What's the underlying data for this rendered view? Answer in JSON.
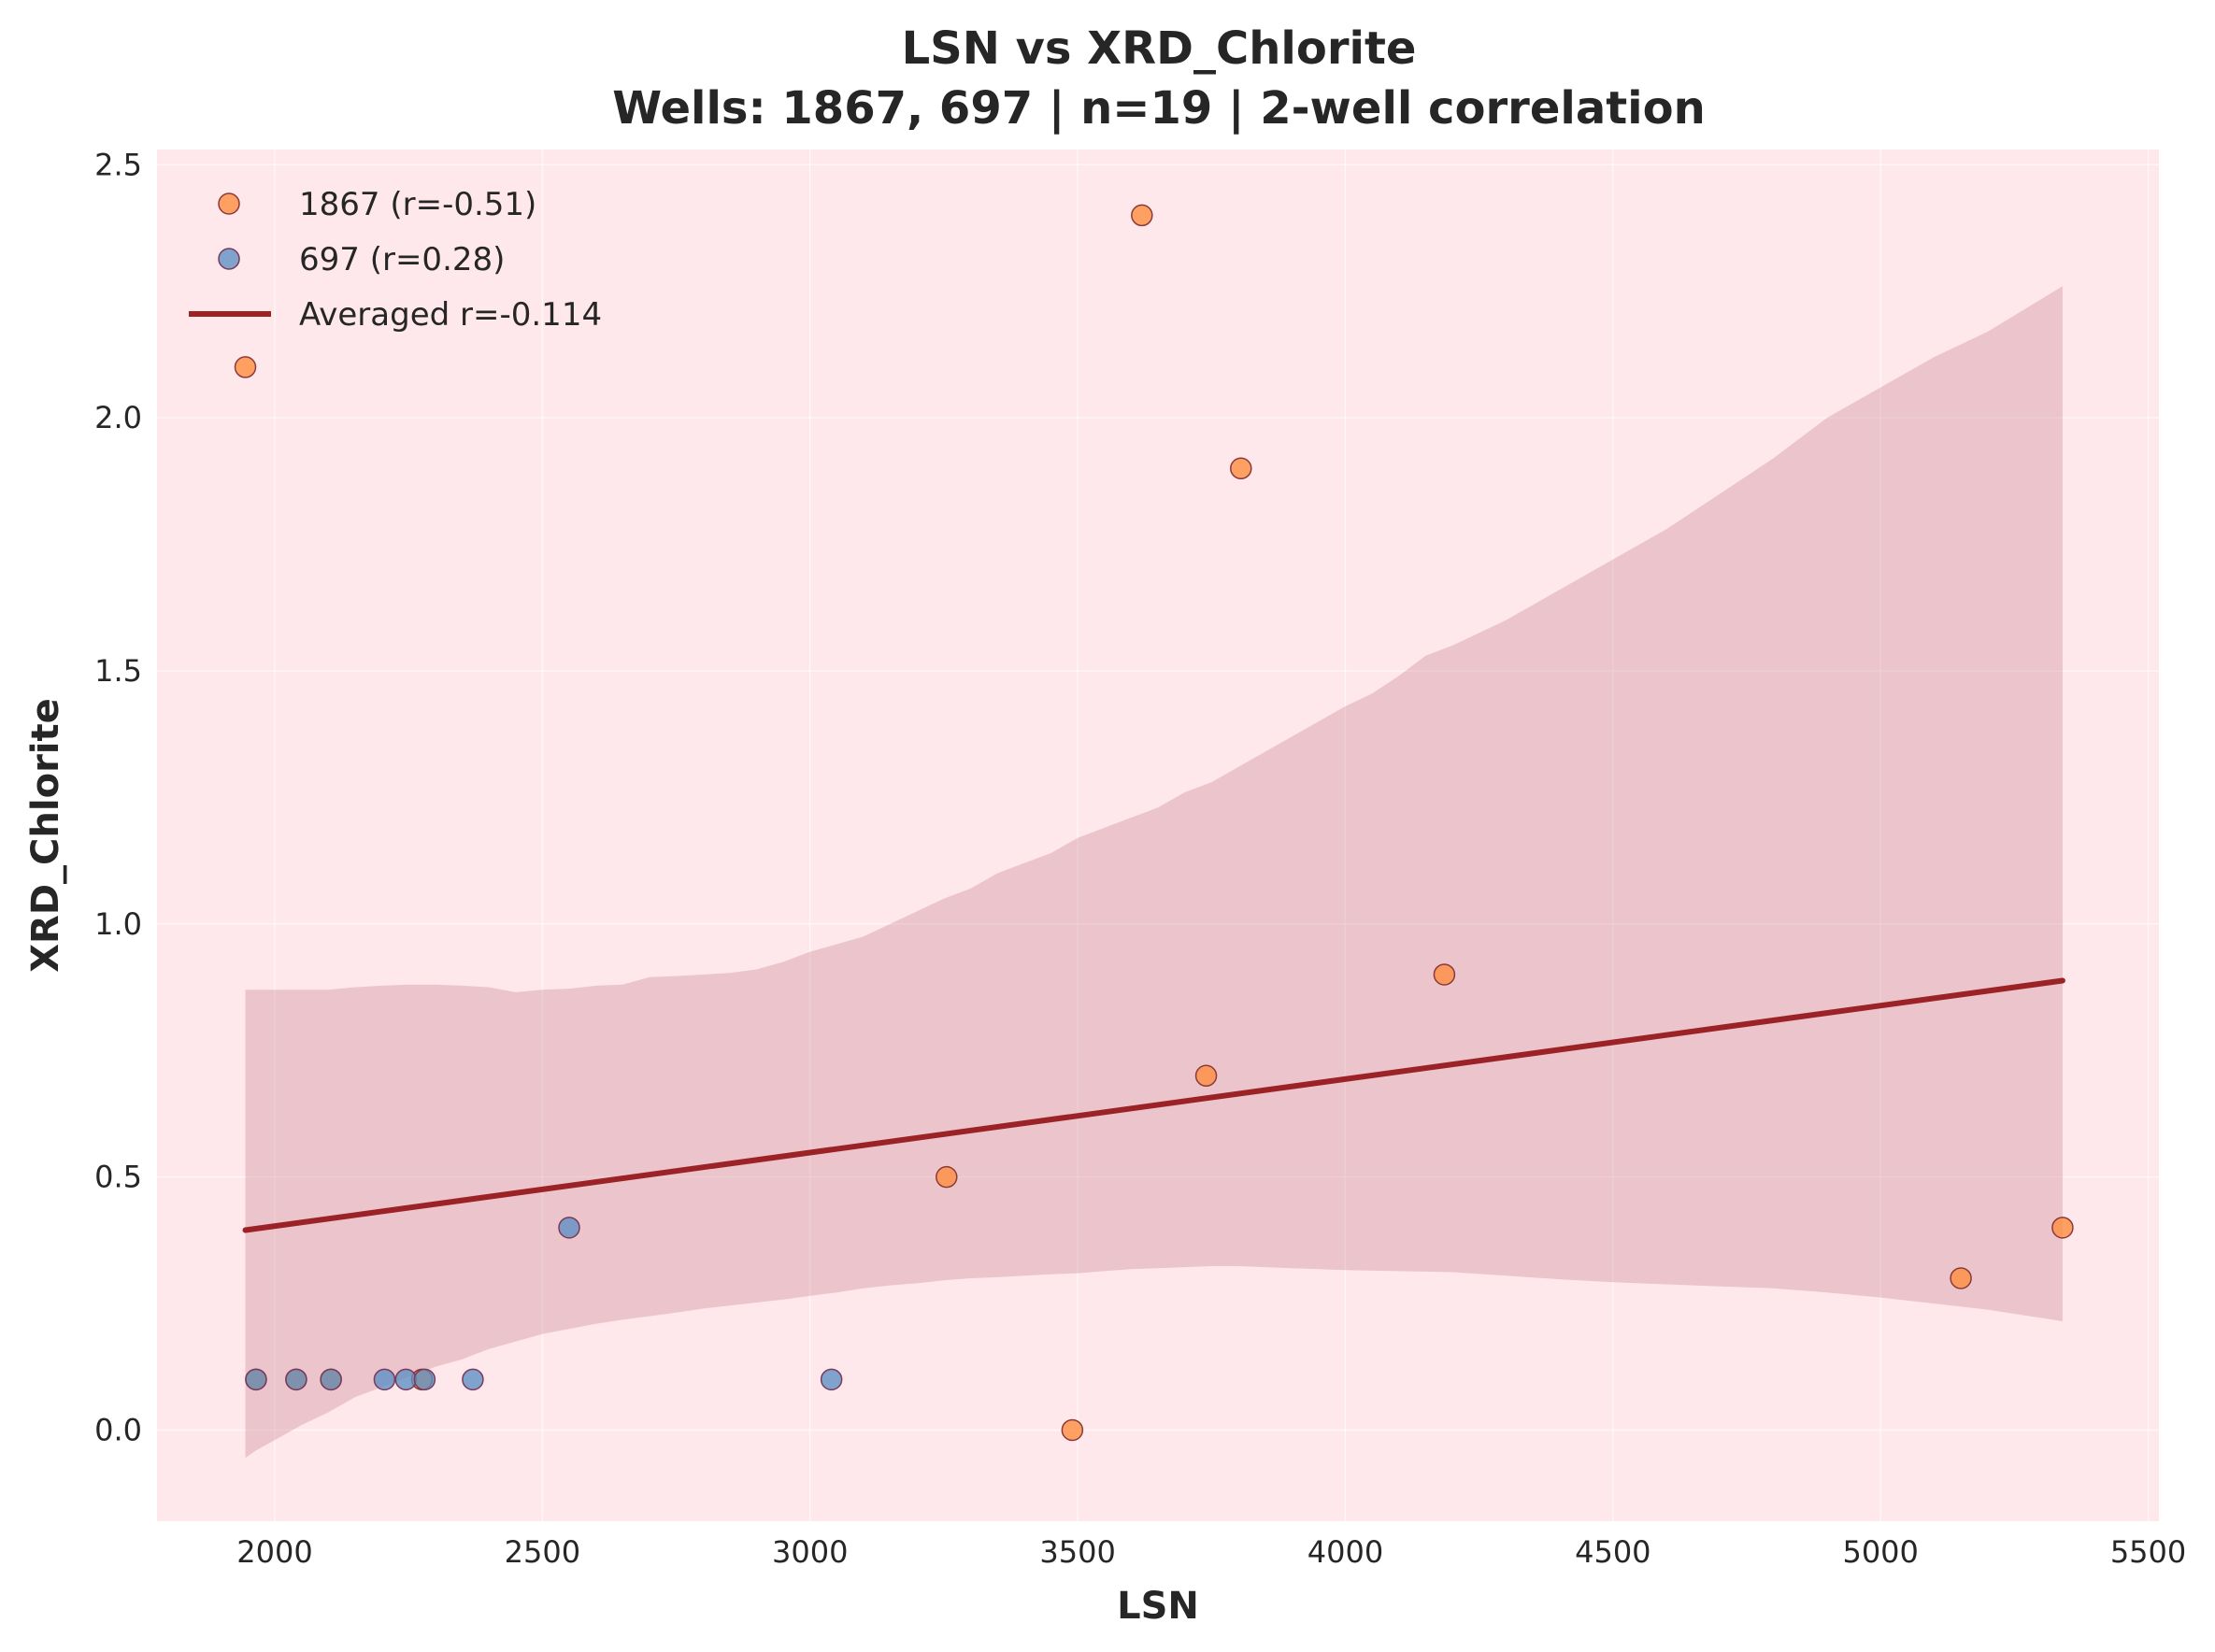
{
  "chart_data": {
    "type": "scatter",
    "title": "LSN vs XRD_Chlorite",
    "subtitle": "Wells: 1867, 697 | n=19 | 2-well correlation",
    "xlabel": "LSN",
    "ylabel": "XRD_Chlorite",
    "xlim": [
      1780,
      5520
    ],
    "ylim": [
      -0.18,
      2.53
    ],
    "xticks": [
      2000,
      2500,
      3000,
      3500,
      4000,
      4500,
      5000,
      5500
    ],
    "yticks": [
      0.0,
      0.5,
      1.0,
      1.5,
      2.0,
      2.5
    ],
    "grid": true,
    "legend": "upper-left",
    "series": [
      {
        "name": "1867 (r=-0.51)",
        "color": "#ff8c3c",
        "points": [
          [
            1945,
            2.1
          ],
          [
            3620,
            2.4
          ],
          [
            3805,
            1.9
          ],
          [
            4185,
            0.9
          ],
          [
            3740,
            0.7
          ],
          [
            3255,
            0.5
          ],
          [
            5150,
            0.3
          ],
          [
            5340,
            0.4
          ],
          [
            3490,
            0.0
          ],
          [
            1965,
            0.1
          ],
          [
            2040,
            0.1
          ],
          [
            2105,
            0.1
          ],
          [
            2275,
            0.1
          ]
        ]
      },
      {
        "name": "697 (r=0.28)",
        "color": "#5b8fc4",
        "points": [
          [
            1965,
            0.1
          ],
          [
            2040,
            0.1
          ],
          [
            2105,
            0.1
          ],
          [
            2205,
            0.1
          ],
          [
            2245,
            0.1
          ],
          [
            2280,
            0.1
          ],
          [
            2370,
            0.1
          ],
          [
            2550,
            0.4
          ],
          [
            3040,
            0.1
          ]
        ]
      }
    ],
    "fit_line": {
      "name": "Averaged r=-0.114",
      "color": "#9b2226",
      "points": [
        [
          1945,
          0.395
        ],
        [
          5340,
          0.888
        ]
      ]
    },
    "confidence_band": {
      "color": "#c9848f",
      "x": [
        1945,
        1965,
        2000,
        2050,
        2100,
        2150,
        2200,
        2250,
        2300,
        2350,
        2400,
        2450,
        2500,
        2550,
        2600,
        2650,
        2700,
        2750,
        2800,
        2850,
        2900,
        2950,
        3000,
        3050,
        3100,
        3150,
        3200,
        3250,
        3300,
        3350,
        3400,
        3450,
        3500,
        3550,
        3600,
        3650,
        3700,
        3750,
        3800,
        3850,
        3900,
        3950,
        4000,
        4050,
        4100,
        4150,
        4200,
        4300,
        4400,
        4500,
        4600,
        4700,
        4800,
        4900,
        5000,
        5100,
        5200,
        5340
      ],
      "upper": [
        0.87,
        0.87,
        0.87,
        0.87,
        0.87,
        0.875,
        0.878,
        0.88,
        0.88,
        0.878,
        0.875,
        0.865,
        0.87,
        0.872,
        0.878,
        0.88,
        0.895,
        0.897,
        0.9,
        0.903,
        0.91,
        0.925,
        0.945,
        0.96,
        0.975,
        1.0,
        1.025,
        1.05,
        1.07,
        1.1,
        1.12,
        1.14,
        1.17,
        1.19,
        1.21,
        1.23,
        1.26,
        1.28,
        1.31,
        1.34,
        1.37,
        1.4,
        1.43,
        1.455,
        1.49,
        1.53,
        1.55,
        1.6,
        1.66,
        1.72,
        1.78,
        1.85,
        1.92,
        2.0,
        2.06,
        2.12,
        2.17,
        2.26
      ],
      "lower": [
        -0.055,
        -0.04,
        -0.02,
        0.01,
        0.035,
        0.065,
        0.085,
        0.105,
        0.125,
        0.14,
        0.16,
        0.175,
        0.19,
        0.2,
        0.21,
        0.218,
        0.225,
        0.232,
        0.24,
        0.246,
        0.252,
        0.258,
        0.265,
        0.272,
        0.28,
        0.286,
        0.29,
        0.296,
        0.3,
        0.302,
        0.305,
        0.308,
        0.31,
        0.314,
        0.318,
        0.32,
        0.322,
        0.324,
        0.324,
        0.322,
        0.32,
        0.318,
        0.316,
        0.315,
        0.314,
        0.313,
        0.312,
        0.305,
        0.298,
        0.292,
        0.288,
        0.284,
        0.28,
        0.272,
        0.262,
        0.25,
        0.238,
        0.215
      ]
    }
  }
}
